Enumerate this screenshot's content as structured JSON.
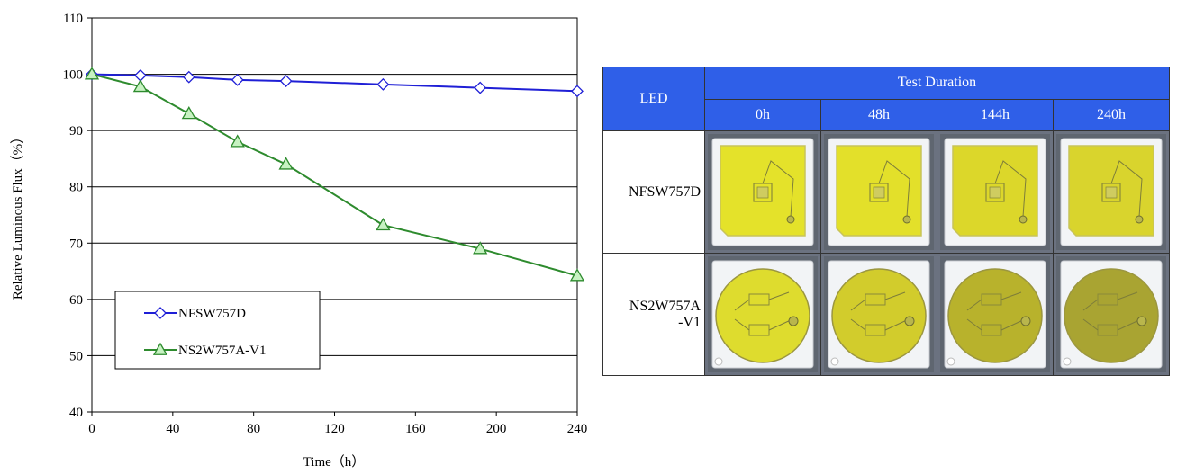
{
  "chart_data": {
    "type": "line",
    "xlabel": "Time（h）",
    "ylabel": "Relative Luminous Flux（%）",
    "xlim": [
      0,
      240
    ],
    "ylim": [
      40,
      110
    ],
    "xticks": [
      0,
      40,
      80,
      120,
      160,
      200,
      240
    ],
    "yticks": [
      40,
      50,
      60,
      70,
      80,
      90,
      100,
      110
    ],
    "grid": "horizontal",
    "legend_position": "bottom-left",
    "series": [
      {
        "name": "NFSW757D",
        "color": "#1f1fd6",
        "marker": "diamond",
        "x": [
          0,
          24,
          48,
          72,
          96,
          144,
          192,
          240
        ],
        "y": [
          100,
          99.8,
          99.5,
          99.0,
          98.8,
          98.2,
          97.6,
          97.0
        ]
      },
      {
        "name": "NS2W757A-V1",
        "color": "#2e8b2e",
        "marker": "triangle",
        "x": [
          0,
          24,
          48,
          72,
          96,
          144,
          192,
          240
        ],
        "y": [
          100,
          97.8,
          93.0,
          88.0,
          84.0,
          73.2,
          69.0,
          64.2
        ]
      }
    ]
  },
  "table": {
    "led_header": "LED",
    "duration_header": "Test Duration",
    "durations": [
      "0h",
      "48h",
      "144h",
      "240h"
    ],
    "rows": [
      {
        "label_line1": "NFSW757D",
        "label_line2": "",
        "shape": "square",
        "phosphor_colors": [
          "#e4e22a",
          "#e3e02a",
          "#dcd72a",
          "#d9d42d"
        ]
      },
      {
        "label_line1": "NS2W757A",
        "label_line2": "-V1",
        "shape": "circle",
        "phosphor_colors": [
          "#dedc2e",
          "#d2cc2c",
          "#b8b22c",
          "#a9a432"
        ]
      }
    ],
    "header_color": "#2f5fe8"
  }
}
